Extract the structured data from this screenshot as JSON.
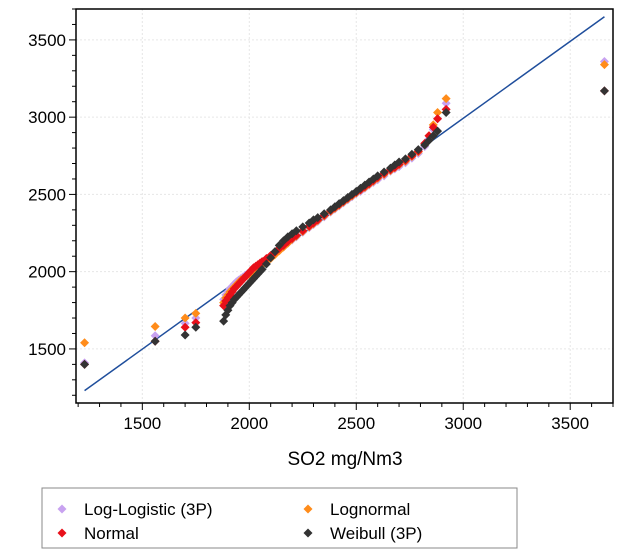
{
  "chart_data": {
    "type": "scatter",
    "title": "",
    "xlabel": "SO2 mg/Nm3",
    "ylabel": "",
    "xlim": [
      1190,
      3700
    ],
    "ylim": [
      1150,
      3700
    ],
    "xticks": [
      1500,
      2000,
      2500,
      3000,
      3500
    ],
    "yticks": [
      1500,
      2000,
      2500,
      3000,
      3500
    ],
    "xtick_labels": [
      "1500",
      "2000",
      "2500",
      "3000",
      "3500"
    ],
    "ytick_labels": [
      "1500",
      "2000",
      "2500",
      "3000",
      "3500"
    ],
    "grid": true,
    "legend_position": "bottom",
    "reference_line": {
      "x": [
        1230,
        3660
      ],
      "y": [
        1230,
        3650
      ],
      "color": "#1f4e9c"
    },
    "x": [
      1230,
      1560,
      1700,
      1750,
      1880,
      1890,
      1900,
      1910,
      1920,
      1930,
      1940,
      1950,
      1960,
      1970,
      1980,
      1990,
      2000,
      2010,
      2020,
      2030,
      2040,
      2050,
      2060,
      2080,
      2100,
      2120,
      2140,
      2160,
      2180,
      2200,
      2220,
      2250,
      2280,
      2300,
      2320,
      2350,
      2380,
      2400,
      2420,
      2440,
      2460,
      2480,
      2500,
      2520,
      2540,
      2560,
      2580,
      2600,
      2630,
      2660,
      2680,
      2700,
      2730,
      2760,
      2790,
      2820,
      2840,
      2860,
      2880,
      2920,
      3660
    ],
    "series": [
      {
        "name": "Log-Logistic (3P)",
        "color": "#c8a2f0",
        "y": [
          1410,
          1585,
          1665,
          1700,
          1820,
          1850,
          1870,
          1890,
          1905,
          1920,
          1935,
          1945,
          1955,
          1965,
          1975,
          1985,
          1995,
          2005,
          2015,
          2025,
          2035,
          2045,
          2055,
          2075,
          2095,
          2115,
          2140,
          2160,
          2185,
          2205,
          2225,
          2255,
          2285,
          2305,
          2325,
          2355,
          2385,
          2405,
          2425,
          2445,
          2465,
          2485,
          2505,
          2520,
          2540,
          2560,
          2578,
          2595,
          2620,
          2650,
          2665,
          2680,
          2705,
          2735,
          2765,
          2810,
          2860,
          2920,
          2990,
          3090,
          3360
        ]
      },
      {
        "name": "Lognormal",
        "color": "#ff8c1a",
        "y": [
          1540,
          1645,
          1700,
          1730,
          1800,
          1830,
          1850,
          1870,
          1885,
          1900,
          1915,
          1930,
          1945,
          1955,
          1965,
          1975,
          1985,
          1995,
          2005,
          2015,
          2025,
          2035,
          2045,
          2065,
          2085,
          2110,
          2135,
          2160,
          2185,
          2210,
          2230,
          2260,
          2290,
          2310,
          2330,
          2360,
          2390,
          2410,
          2430,
          2450,
          2470,
          2490,
          2510,
          2528,
          2545,
          2565,
          2585,
          2605,
          2630,
          2655,
          2672,
          2690,
          2715,
          2745,
          2775,
          2820,
          2880,
          2950,
          3030,
          3120,
          3340
        ]
      },
      {
        "name": "Normal",
        "color": "#e8101a",
        "y": [
          1400,
          1550,
          1640,
          1670,
          1780,
          1810,
          1830,
          1850,
          1870,
          1890,
          1905,
          1920,
          1935,
          1950,
          1965,
          1980,
          1995,
          2010,
          2025,
          2035,
          2045,
          2055,
          2065,
          2085,
          2105,
          2125,
          2150,
          2170,
          2195,
          2215,
          2235,
          2265,
          2295,
          2315,
          2335,
          2365,
          2395,
          2415,
          2435,
          2455,
          2475,
          2495,
          2515,
          2530,
          2550,
          2570,
          2590,
          2610,
          2635,
          2660,
          2675,
          2695,
          2720,
          2750,
          2780,
          2830,
          2880,
          2935,
          2990,
          3050,
          3170
        ]
      },
      {
        "name": "Weibull (3P)",
        "color": "#333333",
        "y": [
          1400,
          1550,
          1590,
          1640,
          1680,
          1720,
          1750,
          1780,
          1800,
          1820,
          1835,
          1850,
          1865,
          1880,
          1895,
          1910,
          1925,
          1940,
          1955,
          1970,
          1985,
          2000,
          2015,
          2050,
          2090,
          2130,
          2170,
          2200,
          2225,
          2245,
          2265,
          2290,
          2315,
          2335,
          2350,
          2375,
          2400,
          2420,
          2440,
          2460,
          2480,
          2500,
          2520,
          2540,
          2560,
          2580,
          2600,
          2620,
          2645,
          2670,
          2690,
          2710,
          2730,
          2760,
          2790,
          2820,
          2850,
          2880,
          2910,
          3030,
          3170
        ]
      }
    ]
  }
}
